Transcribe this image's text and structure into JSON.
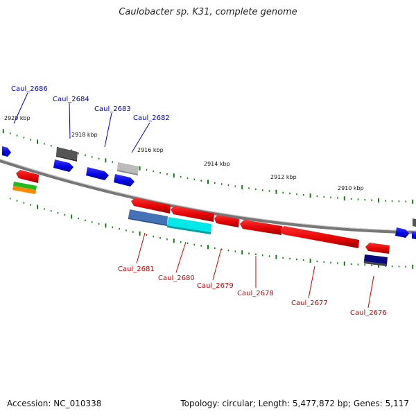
{
  "title": "Caulobacter sp. K31, complete genome",
  "accession": "Accession: NC_010338",
  "summary": "Topology: circular; Length: 5,477,872 bp; Genes: 5,117",
  "colors": {
    "backbone": "#888888",
    "tick": "#1a7a1a",
    "upper_label": "#0000cc",
    "lower_label": "#cc0000"
  },
  "kbp_labels": [
    "2920 kbp",
    "2918 kbp",
    "2916 kbp",
    "2914 kbp",
    "2912 kbp",
    "2910 kbp"
  ],
  "upper_genes": [
    "Caul_2686",
    "Caul_2684",
    "Caul_2683",
    "Caul_2682"
  ],
  "lower_genes": [
    "Caul_2681",
    "Caul_2680",
    "Caul_2679",
    "Caul_2678",
    "Caul_2677",
    "Caul_2676"
  ]
}
